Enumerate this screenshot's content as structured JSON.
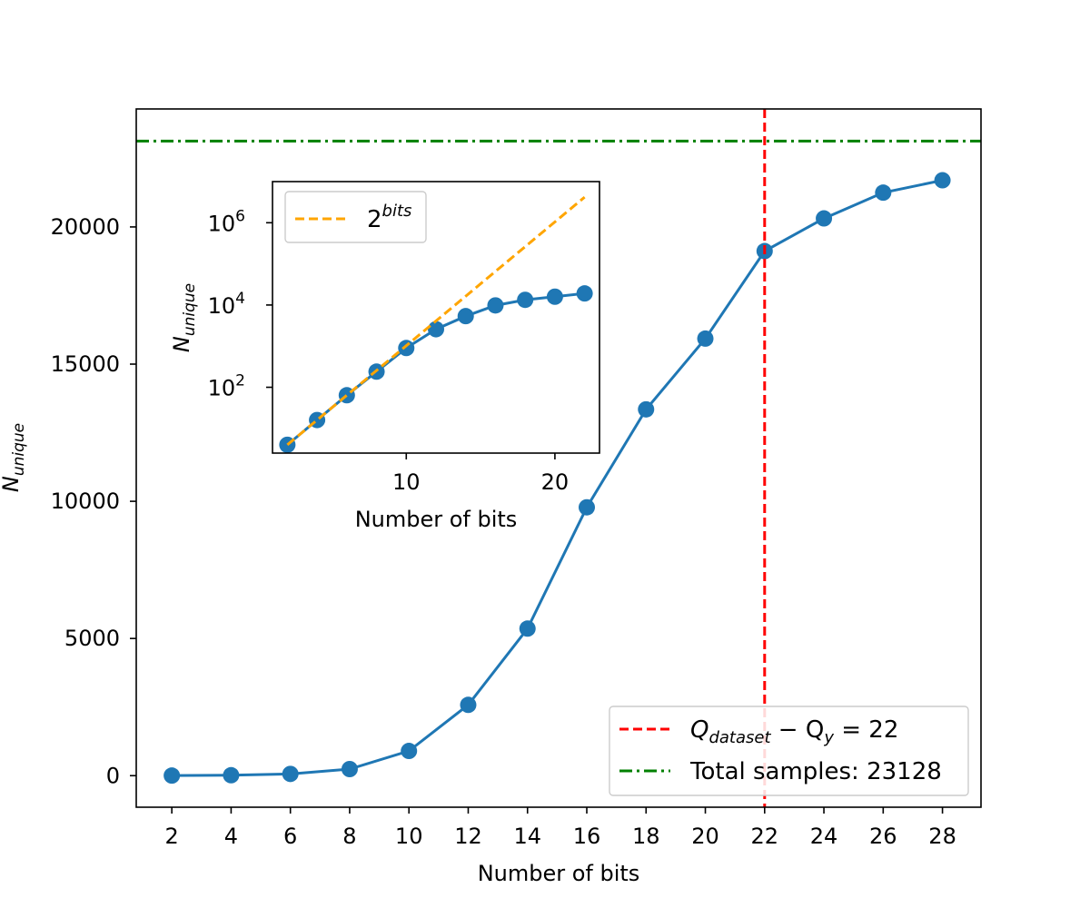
{
  "chart_data": [
    {
      "id": "main",
      "type": "line",
      "xlabel": "Number of bits",
      "ylabel": "N",
      "ylabel_sub": "unique",
      "xlim": [
        0.8,
        29.3
      ],
      "ylim": [
        -1150,
        24300
      ],
      "xticks": [
        2,
        4,
        6,
        8,
        10,
        12,
        14,
        16,
        18,
        20,
        22,
        24,
        26,
        28
      ],
      "yticks": [
        0,
        5000,
        10000,
        15000,
        20000
      ],
      "series": [
        {
          "name": "N_unique",
          "color": "#1f77b4",
          "x": [
            2,
            4,
            6,
            8,
            10,
            12,
            14,
            16,
            18,
            20,
            22,
            24,
            26,
            28
          ],
          "y": [
            4,
            16,
            64,
            240,
            900,
            2580,
            5360,
            9780,
            13350,
            15930,
            19120,
            20310,
            21250,
            21700
          ]
        }
      ],
      "vline": {
        "x": 22,
        "color": "#ff0000",
        "style": "dashed"
      },
      "hline": {
        "y": 23128,
        "color": "#008000",
        "style": "dashdot"
      },
      "legend": {
        "location": "lower-right",
        "entries": [
          {
            "label_main": "Q",
            "label_sub": "dataset",
            "label_mid": " − Q",
            "label_sub2": "y",
            "label_tail": " = 22",
            "color": "#ff0000",
            "style": "dashed"
          },
          {
            "label_plain": "Total samples: 23128",
            "color": "#008000",
            "style": "dashdot"
          }
        ]
      }
    },
    {
      "id": "inset",
      "type": "line",
      "scale_y": "log",
      "xlabel": "Number of bits",
      "ylabel": "N",
      "ylabel_sub": "unique",
      "xlim": [
        1.0,
        23.0
      ],
      "ylim_log10": [
        0.4,
        7.0
      ],
      "xticks": [
        10,
        20
      ],
      "yticks_log10": [
        2,
        4,
        6
      ],
      "ytick_base": "10",
      "series": [
        {
          "name": "N_unique",
          "color": "#1f77b4",
          "x": [
            2,
            4,
            6,
            8,
            10,
            12,
            14,
            16,
            18,
            20,
            22
          ],
          "y": [
            4,
            16,
            64,
            240,
            900,
            2580,
            5360,
            9780,
            13350,
            15930,
            19120
          ]
        },
        {
          "name": "2^bits",
          "color": "#ffa500",
          "style": "dashed",
          "x": [
            2,
            22
          ],
          "y": [
            4,
            4194304
          ]
        }
      ],
      "legend": {
        "location": "upper-left",
        "entries": [
          {
            "label_base": "2",
            "label_sup": "bits",
            "color": "#ffa500",
            "style": "dashed"
          }
        ]
      }
    }
  ]
}
